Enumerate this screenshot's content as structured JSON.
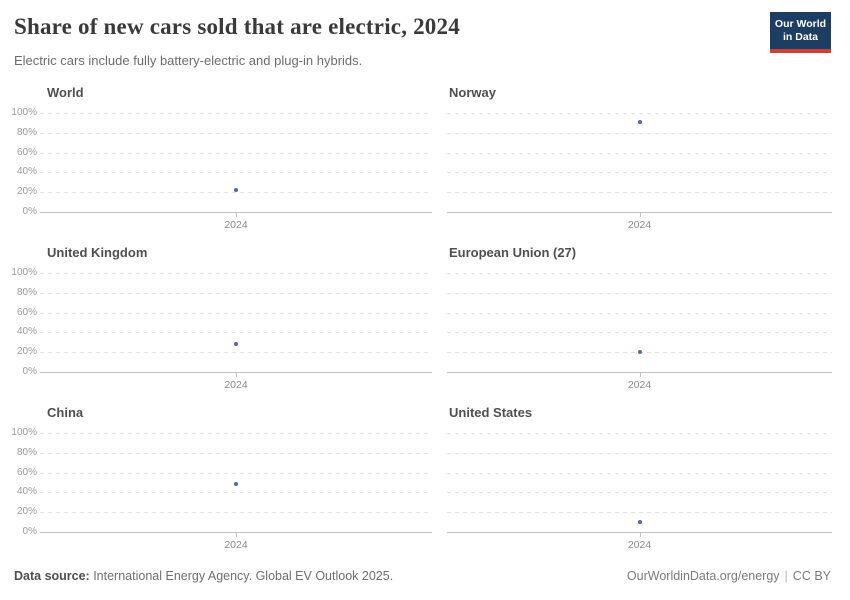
{
  "header": {
    "title": "Share of new cars sold that are electric, 2024",
    "subtitle": "Electric cars include fully battery-electric and plug-in hybrids.",
    "logo": {
      "line1": "Our World",
      "line2": "in Data",
      "bg_color": "#1d3d63",
      "accent_color": "#cd3e34"
    }
  },
  "chart_data": {
    "type": "scatter",
    "title": "Share of new cars sold that are electric, 2024",
    "subtitle": "Electric cars include fully battery-electric and plug-in hybrids.",
    "x": [
      2024
    ],
    "x_tick_label": "2024",
    "xlabel": "",
    "ylabel": "",
    "ylim": [
      0,
      100
    ],
    "y_ticks": [
      "0%",
      "20%",
      "40%",
      "60%",
      "80%",
      "100%"
    ],
    "grid": "horizontal dashed",
    "layout": "small multiples, 2 columns x 3 rows, y-axis labels on left column only",
    "point_color": "#4c68ae",
    "series": [
      {
        "name": "World",
        "values": [
          22
        ]
      },
      {
        "name": "Norway",
        "values": [
          91
        ]
      },
      {
        "name": "United Kingdom",
        "values": [
          28
        ]
      },
      {
        "name": "European Union (27)",
        "values": [
          20
        ]
      },
      {
        "name": "China",
        "values": [
          48
        ]
      },
      {
        "name": "United States",
        "values": [
          10
        ]
      }
    ]
  },
  "footer": {
    "source_label": "Data source:",
    "source_text": " International Energy Agency. Global EV Outlook 2025.",
    "site": "OurWorldinData.org/energy",
    "separator": "|",
    "license": "CC BY"
  }
}
